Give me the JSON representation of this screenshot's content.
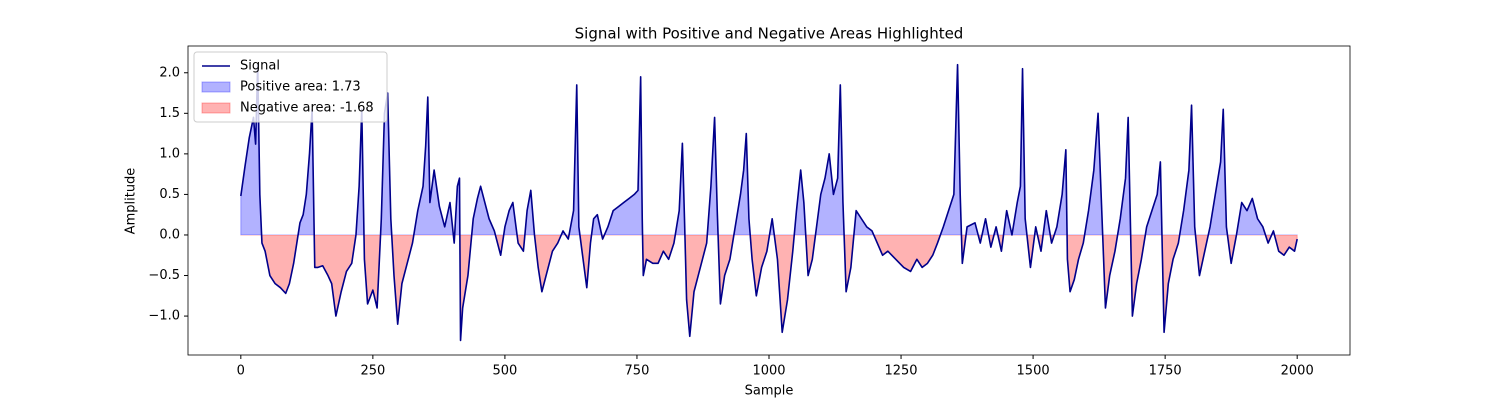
{
  "chart_data": {
    "type": "line",
    "title": "Signal with Positive and Negative Areas Highlighted",
    "x_label": "Sample",
    "y_label": "Amplitude",
    "xlim": [
      -100,
      2100
    ],
    "ylim": [
      -1.48,
      2.33
    ],
    "xticks": [
      0,
      250,
      500,
      750,
      1000,
      1250,
      1500,
      1750,
      2000
    ],
    "yticks": [
      {
        "value": -1.0,
        "label": "−1.0"
      },
      {
        "value": -0.5,
        "label": "−0.5"
      },
      {
        "value": 0.0,
        "label": "0.0"
      },
      {
        "value": 0.5,
        "label": "0.5"
      },
      {
        "value": 1.0,
        "label": "1.0"
      },
      {
        "value": 1.5,
        "label": "1.5"
      },
      {
        "value": 2.0,
        "label": "2.0"
      }
    ],
    "grid": false,
    "legend": "upper left",
    "x": [
      0,
      8,
      16,
      24,
      28,
      32,
      36,
      40,
      46,
      55,
      65,
      75,
      85,
      92,
      100,
      106,
      112,
      118,
      124,
      130,
      135,
      140,
      146,
      155,
      165,
      172,
      180,
      190,
      200,
      210,
      218,
      224,
      229,
      234,
      240,
      250,
      258,
      266,
      272,
      278,
      284,
      290,
      297,
      305,
      315,
      325,
      335,
      345,
      350,
      354,
      358,
      366,
      376,
      386,
      396,
      404,
      410,
      414,
      416,
      420,
      430,
      440,
      448,
      454,
      462,
      470,
      480,
      492,
      500,
      508,
      515,
      525,
      535,
      542,
      549,
      556,
      563,
      570,
      580,
      590,
      600,
      610,
      620,
      630,
      636,
      640,
      648,
      655,
      662,
      668,
      675,
      685,
      695,
      705,
      715,
      725,
      735,
      745,
      752,
      757,
      760,
      762,
      768,
      780,
      790,
      800,
      810,
      820,
      830,
      836,
      840,
      844,
      850,
      858,
      866,
      874,
      882,
      890,
      897,
      902,
      908,
      916,
      926,
      936,
      946,
      952,
      957,
      962,
      968,
      976,
      986,
      996,
      1006,
      1016,
      1025,
      1035,
      1045,
      1052,
      1060,
      1066,
      1074,
      1082,
      1090,
      1098,
      1106,
      1114,
      1122,
      1130,
      1135,
      1140,
      1146,
      1155,
      1165,
      1175,
      1185,
      1195,
      1205,
      1215,
      1225,
      1240,
      1255,
      1268,
      1280,
      1290,
      1300,
      1310,
      1319,
      1330,
      1340,
      1350,
      1357,
      1362,
      1366,
      1375,
      1390,
      1400,
      1410,
      1420,
      1430,
      1440,
      1450,
      1460,
      1470,
      1476,
      1480,
      1485,
      1495,
      1505,
      1515,
      1525,
      1535,
      1545,
      1555,
      1562,
      1565,
      1570,
      1578,
      1586,
      1595,
      1605,
      1615,
      1623,
      1630,
      1637,
      1645,
      1655,
      1665,
      1675,
      1680,
      1688,
      1696,
      1705,
      1715,
      1725,
      1735,
      1741,
      1748,
      1756,
      1765,
      1775,
      1785,
      1795,
      1800,
      1806,
      1815,
      1825,
      1835,
      1845,
      1855,
      1860,
      1866,
      1875,
      1885,
      1895,
      1905,
      1915,
      1925,
      1935,
      1945,
      1955,
      1965,
      1975,
      1985,
      1995,
      2000
    ],
    "series": [
      {
        "name": "Signal",
        "color": "#00008b",
        "values": [
          0.48,
          0.85,
          1.2,
          1.45,
          1.12,
          2.1,
          0.5,
          -0.1,
          -0.2,
          -0.5,
          -0.6,
          -0.65,
          -0.72,
          -0.6,
          -0.35,
          -0.1,
          0.15,
          0.25,
          0.5,
          1.0,
          1.55,
          -0.4,
          -0.4,
          -0.38,
          -0.5,
          -0.6,
          -1.0,
          -0.7,
          -0.45,
          -0.35,
          0.0,
          0.6,
          1.55,
          -0.3,
          -0.85,
          -0.68,
          -0.9,
          0.2,
          1.5,
          1.75,
          0.2,
          -0.5,
          -1.1,
          -0.6,
          -0.35,
          -0.1,
          0.3,
          0.6,
          1.1,
          1.7,
          0.4,
          0.8,
          0.35,
          0.1,
          0.4,
          -0.1,
          0.6,
          0.7,
          -1.3,
          -0.9,
          -0.5,
          0.2,
          0.45,
          0.6,
          0.4,
          0.2,
          0.05,
          -0.25,
          0.1,
          0.3,
          0.4,
          -0.1,
          -0.2,
          0.3,
          0.55,
          0.0,
          -0.4,
          -0.7,
          -0.45,
          -0.2,
          -0.1,
          0.05,
          -0.05,
          0.3,
          1.85,
          0.1,
          -0.3,
          -0.65,
          -0.1,
          0.2,
          0.25,
          -0.05,
          0.1,
          0.3,
          0.35,
          0.4,
          0.45,
          0.5,
          0.55,
          1.95,
          0.2,
          -0.5,
          -0.3,
          -0.35,
          -0.35,
          -0.2,
          -0.3,
          -0.1,
          0.3,
          1.13,
          0.2,
          -0.8,
          -1.25,
          -0.7,
          -0.5,
          -0.3,
          -0.1,
          0.6,
          1.45,
          0.3,
          -0.85,
          -0.5,
          -0.3,
          0.1,
          0.5,
          0.8,
          1.25,
          0.2,
          -0.3,
          -0.75,
          -0.4,
          -0.2,
          0.2,
          -0.3,
          -1.2,
          -0.8,
          -0.2,
          0.3,
          0.8,
          0.4,
          -0.5,
          -0.3,
          0.1,
          0.5,
          0.7,
          1.0,
          0.5,
          0.7,
          1.85,
          0.4,
          -0.7,
          -0.4,
          0.3,
          0.2,
          0.1,
          0.05,
          -0.1,
          -0.25,
          -0.2,
          -0.3,
          -0.4,
          -0.45,
          -0.3,
          -0.4,
          -0.35,
          -0.25,
          -0.1,
          0.1,
          0.3,
          0.5,
          2.1,
          0.5,
          -0.35,
          0.1,
          0.15,
          -0.1,
          0.2,
          -0.15,
          0.1,
          -0.2,
          0.3,
          0.0,
          0.4,
          0.6,
          2.05,
          0.2,
          -0.4,
          0.1,
          -0.2,
          0.3,
          -0.1,
          0.1,
          0.5,
          1.05,
          -0.3,
          -0.7,
          -0.55,
          -0.3,
          -0.1,
          0.3,
          0.8,
          1.5,
          0.3,
          -0.9,
          -0.5,
          -0.2,
          0.2,
          0.7,
          1.45,
          -1.0,
          -0.6,
          -0.3,
          0.1,
          0.3,
          0.5,
          0.9,
          -1.2,
          -0.6,
          -0.3,
          -0.1,
          0.3,
          0.8,
          1.6,
          0.1,
          -0.5,
          -0.2,
          0.1,
          0.5,
          0.9,
          1.55,
          0.1,
          -0.35,
          0.0,
          0.4,
          0.3,
          0.45,
          0.2,
          0.1,
          -0.1,
          0.05,
          -0.2,
          -0.25,
          -0.15,
          -0.2,
          -0.05
        ]
      }
    ],
    "areas": [
      {
        "name": "Positive area: 1.73",
        "color": "#0000ff"
      },
      {
        "name": "Negative area: -1.68",
        "color": "#ff0000"
      }
    ]
  }
}
